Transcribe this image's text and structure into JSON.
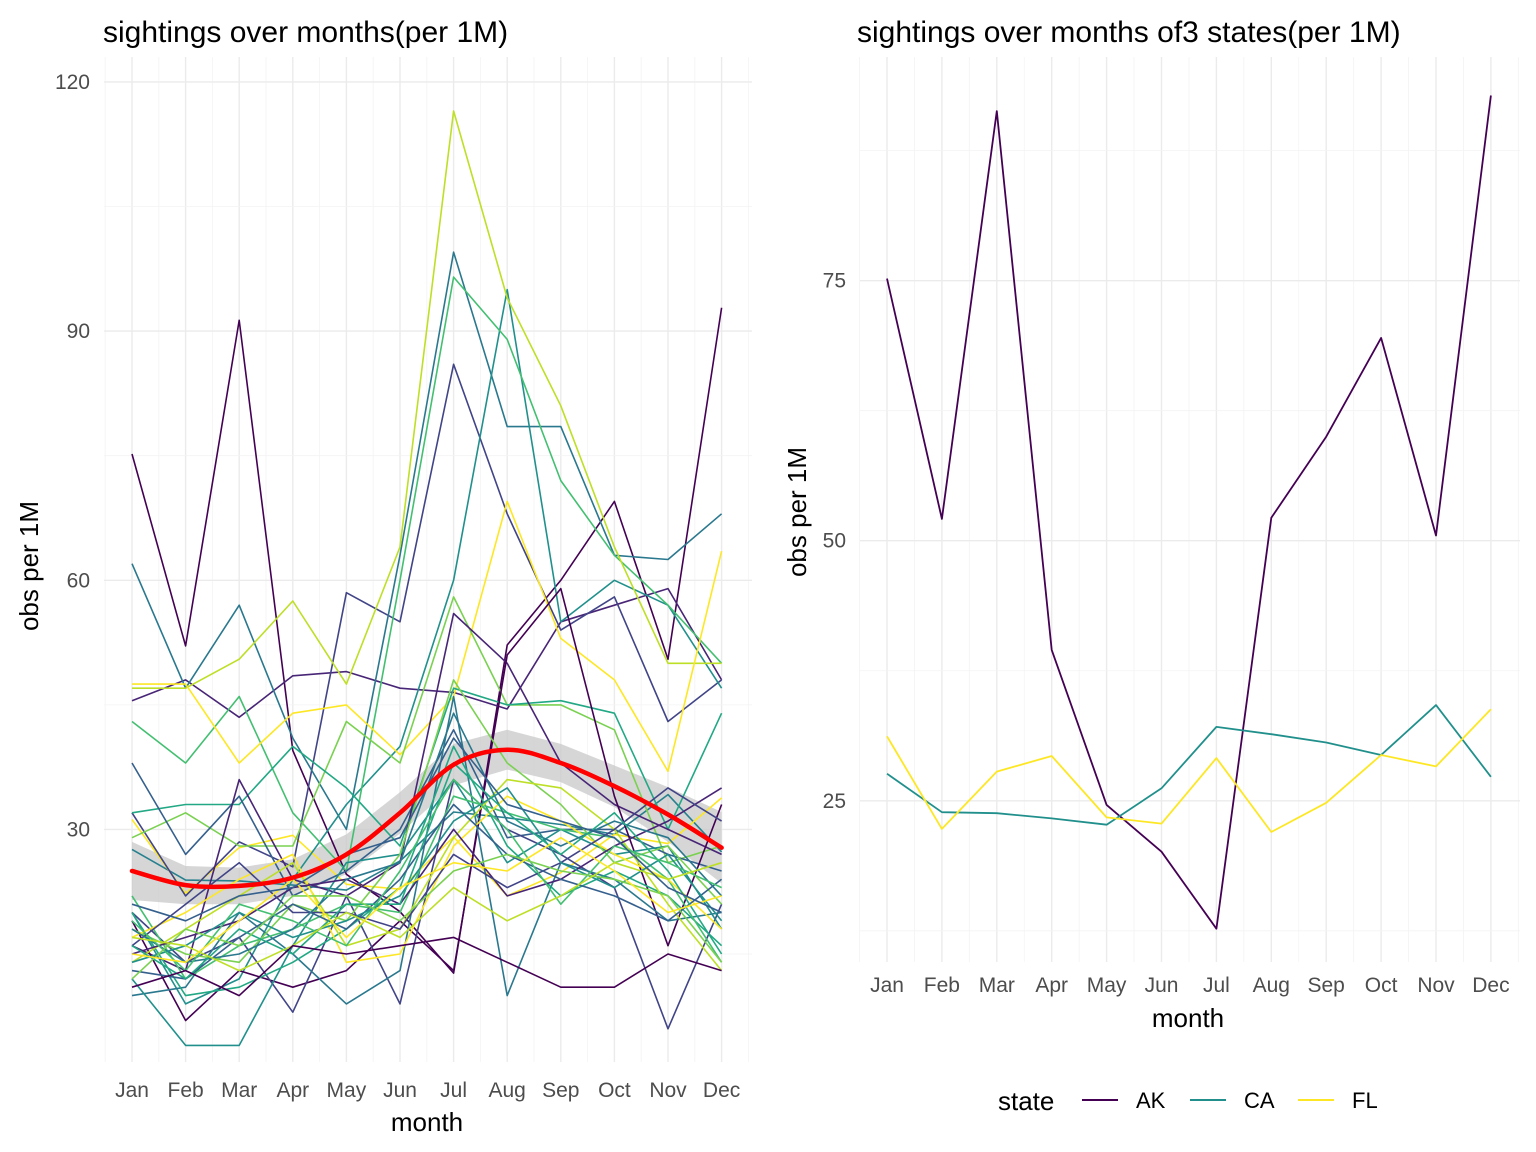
{
  "chart_data": [
    {
      "type": "line",
      "title": "sightings over months(per 1M)",
      "xlabel": "month",
      "ylabel": "obs per 1M",
      "categories": [
        "Jan",
        "Feb",
        "Mar",
        "Apr",
        "May",
        "Jun",
        "Jul",
        "Aug",
        "Sep",
        "Oct",
        "Nov",
        "Dec"
      ],
      "yticks": [
        30,
        60,
        90,
        120
      ],
      "ylim": [
        2,
        123
      ],
      "grid": true,
      "colors": [
        "#440154",
        "#482576",
        "#414487",
        "#35608d",
        "#2a788e",
        "#21908c",
        "#22a884",
        "#43bf71",
        "#7ad151",
        "#bddf26",
        "#fde725"
      ],
      "series": [
        {
          "color": "#440154",
          "values": [
            75.2,
            52.1,
            91.3,
            39.5,
            24.6,
            20.1,
            12.7,
            52.2,
            60.0,
            69.5,
            50.5,
            92.8
          ]
        },
        {
          "color": "#27808e",
          "values": [
            27.6,
            23.9,
            23.8,
            23.3,
            22.7,
            26.2,
            32.1,
            31.4,
            30.6,
            29.4,
            34.2,
            27.3
          ]
        },
        {
          "color": "#fde725",
          "values": [
            31.2,
            22.3,
            27.8,
            29.3,
            23.4,
            22.8,
            29.1,
            22.0,
            24.8,
            29.4,
            28.3,
            33.8
          ]
        },
        {
          "color": "#482576",
          "values": [
            45.5,
            48.0,
            43.5,
            48.5,
            49.0,
            47.0,
            46.5,
            44.5,
            55.0,
            57.0,
            59.0,
            48.0
          ]
        },
        {
          "color": "#414487",
          "values": [
            32.0,
            22.0,
            28.5,
            25.5,
            58.5,
            55.0,
            86.0,
            68.0,
            54.0,
            58.0,
            43.0,
            48.0
          ]
        },
        {
          "color": "#2a788e",
          "values": [
            62.0,
            47.0,
            57.0,
            41.0,
            30.0,
            63.0,
            99.5,
            78.5,
            78.5,
            63.0,
            62.5,
            68.0
          ]
        },
        {
          "color": "#21908c",
          "values": [
            20.0,
            9.0,
            12.0,
            24.0,
            33.0,
            40.0,
            60.0,
            95.0,
            55.0,
            60.0,
            57.0,
            47.0
          ]
        },
        {
          "color": "#43bf71",
          "values": [
            43.0,
            38.0,
            46.0,
            32.0,
            25.0,
            60.0,
            96.5,
            89.0,
            72.0,
            63.0,
            57.0,
            50.0
          ]
        },
        {
          "color": "#bddf26",
          "values": [
            47.0,
            47.0,
            50.5,
            57.5,
            47.5,
            64.0,
            116.5,
            94.0,
            81.0,
            64.0,
            50.0,
            50.0
          ]
        },
        {
          "color": "#fde725",
          "values": [
            47.5,
            47.5,
            38.0,
            44.0,
            45.0,
            39.0,
            46.0,
            69.5,
            53.0,
            48.0,
            37.0,
            63.5
          ]
        },
        {
          "color": "#7ad151",
          "values": [
            29.0,
            32.0,
            28.0,
            28.0,
            43.0,
            38.0,
            58.0,
            45.0,
            45.0,
            42.0,
            26.0,
            28.0
          ]
        },
        {
          "color": "#22a884",
          "values": [
            32.0,
            33.0,
            33.0,
            40.0,
            35.0,
            28.0,
            47.0,
            45.0,
            45.5,
            44.0,
            30.0,
            44.0
          ]
        },
        {
          "color": "#35608d",
          "values": [
            38.0,
            27.0,
            34.0,
            22.0,
            25.0,
            30.0,
            42.0,
            29.0,
            30.0,
            30.0,
            27.0,
            25.0
          ]
        },
        {
          "color": "#482576",
          "values": [
            16.0,
            13.0,
            36.0,
            24.0,
            22.0,
            26.0,
            56.0,
            50.0,
            38.0,
            33.0,
            30.0,
            27.0
          ]
        },
        {
          "color": "#440154",
          "values": [
            19.0,
            7.0,
            13.0,
            11.0,
            13.0,
            19.0,
            13.0,
            51.0,
            59.0,
            34.0,
            16.0,
            33.0
          ]
        },
        {
          "color": "#414487",
          "values": [
            20.0,
            14.0,
            17.0,
            8.0,
            22.0,
            9.0,
            36.0,
            30.0,
            27.0,
            23.0,
            6.0,
            21.0
          ]
        },
        {
          "color": "#2a788e",
          "values": [
            10.0,
            11.0,
            20.0,
            15.0,
            9.0,
            13.0,
            46.0,
            10.0,
            26.0,
            24.0,
            19.0,
            20.0
          ]
        },
        {
          "color": "#21908c",
          "values": [
            12.0,
            4.0,
            4.0,
            16.0,
            26.0,
            27.0,
            36.0,
            26.0,
            30.0,
            27.0,
            28.0,
            18.0
          ]
        },
        {
          "color": "#22a884",
          "values": [
            20.0,
            10.0,
            11.0,
            14.0,
            18.0,
            23.0,
            40.0,
            28.0,
            22.0,
            25.0,
            22.0,
            16.0
          ]
        },
        {
          "color": "#43bf71",
          "values": [
            22.0,
            12.0,
            16.0,
            18.0,
            21.0,
            20.0,
            34.0,
            32.0,
            30.0,
            29.0,
            24.0,
            14.0
          ]
        },
        {
          "color": "#7ad151",
          "values": [
            18.0,
            15.0,
            14.0,
            21.0,
            19.0,
            27.0,
            48.0,
            38.0,
            33.0,
            26.0,
            28.0,
            21.0
          ]
        },
        {
          "color": "#bddf26",
          "values": [
            14.0,
            18.0,
            22.0,
            26.0,
            16.0,
            18.0,
            29.0,
            36.0,
            35.0,
            30.0,
            21.0,
            13.0
          ]
        },
        {
          "color": "#fde725",
          "values": [
            17.0,
            20.0,
            24.0,
            27.0,
            14.0,
            15.0,
            28.0,
            34.0,
            31.0,
            27.0,
            24.0,
            18.0
          ]
        },
        {
          "color": "#482576",
          "values": [
            15.0,
            17.0,
            19.0,
            23.0,
            24.0,
            21.0,
            30.0,
            22.0,
            24.0,
            28.0,
            31.0,
            35.0
          ]
        },
        {
          "color": "#414487",
          "values": [
            16.0,
            21.0,
            26.0,
            20.0,
            20.0,
            18.0,
            27.0,
            23.0,
            26.0,
            30.0,
            35.0,
            31.0
          ]
        },
        {
          "color": "#35608d",
          "values": [
            13.0,
            12.0,
            17.0,
            21.0,
            18.0,
            24.0,
            33.0,
            27.0,
            24.0,
            22.0,
            19.0,
            24.0
          ]
        },
        {
          "color": "#2a788e",
          "values": [
            18.0,
            14.0,
            15.0,
            18.0,
            24.0,
            26.0,
            44.0,
            31.0,
            28.0,
            31.0,
            29.0,
            22.0
          ]
        },
        {
          "color": "#21908c",
          "values": [
            14.0,
            16.0,
            20.0,
            17.0,
            19.0,
            22.0,
            31.0,
            35.0,
            26.0,
            23.0,
            27.0,
            19.0
          ]
        },
        {
          "color": "#22a884",
          "values": [
            16.0,
            12.0,
            18.0,
            15.0,
            21.0,
            21.0,
            38.0,
            32.0,
            27.0,
            32.0,
            25.0,
            15.0
          ]
        },
        {
          "color": "#43bf71",
          "values": [
            19.0,
            13.0,
            21.0,
            19.0,
            16.0,
            25.0,
            36.0,
            30.0,
            21.0,
            28.0,
            26.0,
            23.0
          ]
        },
        {
          "color": "#7ad151",
          "values": [
            12.0,
            18.0,
            16.0,
            22.0,
            22.0,
            19.0,
            25.0,
            27.0,
            25.0,
            24.0,
            22.0,
            14.0
          ]
        },
        {
          "color": "#bddf26",
          "values": [
            17.0,
            16.0,
            13.0,
            16.0,
            20.0,
            17.0,
            23.0,
            19.0,
            22.0,
            26.0,
            24.0,
            26.0
          ]
        },
        {
          "color": "#fde725",
          "values": [
            15.0,
            14.0,
            19.0,
            24.0,
            17.0,
            23.0,
            26.0,
            25.0,
            29.0,
            25.0,
            20.0,
            22.0
          ]
        },
        {
          "color": "#35608d",
          "values": [
            21.0,
            19.0,
            22.0,
            23.0,
            27.0,
            29.0,
            41.0,
            33.0,
            31.0,
            29.0,
            23.0,
            20.0
          ]
        },
        {
          "color": "#440154",
          "values": [
            11.0,
            13.0,
            10.0,
            16.0,
            15.0,
            16.0,
            17.0,
            14.0,
            11.0,
            11.0,
            15.0,
            13.0
          ]
        }
      ],
      "smooth": {
        "color": "#ff0000",
        "band_color": "#c8c8c8",
        "values": [
          25.0,
          23.3,
          23.2,
          24.2,
          27.0,
          32.0,
          37.8,
          39.6,
          38.0,
          35.2,
          31.8,
          27.8
        ],
        "lower": [
          21.5,
          21.0,
          21.0,
          22.0,
          24.6,
          29.5,
          35.3,
          37.2,
          35.7,
          32.7,
          28.5,
          23.5
        ],
        "upper": [
          28.5,
          25.6,
          25.4,
          26.4,
          29.4,
          34.5,
          40.3,
          42.0,
          40.3,
          37.7,
          35.1,
          32.1
        ]
      }
    },
    {
      "type": "line",
      "title": "sightings over months of3 states(per 1M)",
      "xlabel": "month",
      "ylabel": "obs per 1M",
      "categories": [
        "Jan",
        "Feb",
        "Mar",
        "Apr",
        "May",
        "Jun",
        "Jul",
        "Aug",
        "Sep",
        "Oct",
        "Nov",
        "Dec"
      ],
      "yticks": [
        25,
        50,
        75
      ],
      "ylim": [
        9.5,
        96.5
      ],
      "grid": true,
      "legend_title": "state",
      "legend_position": "bottom",
      "series": [
        {
          "name": "AK",
          "color": "#440154",
          "values": [
            75.2,
            52.1,
            91.3,
            39.5,
            24.6,
            20.1,
            12.7,
            52.2,
            60.0,
            69.5,
            50.5,
            92.8
          ]
        },
        {
          "name": "CA",
          "color": "#21908c",
          "values": [
            27.6,
            23.9,
            23.8,
            23.3,
            22.7,
            26.2,
            32.1,
            31.4,
            30.6,
            29.4,
            34.2,
            27.3
          ]
        },
        {
          "name": "FL",
          "color": "#fde725",
          "values": [
            31.2,
            22.3,
            27.8,
            29.3,
            23.4,
            22.8,
            29.1,
            22.0,
            24.8,
            29.4,
            28.3,
            33.8
          ]
        }
      ]
    }
  ]
}
